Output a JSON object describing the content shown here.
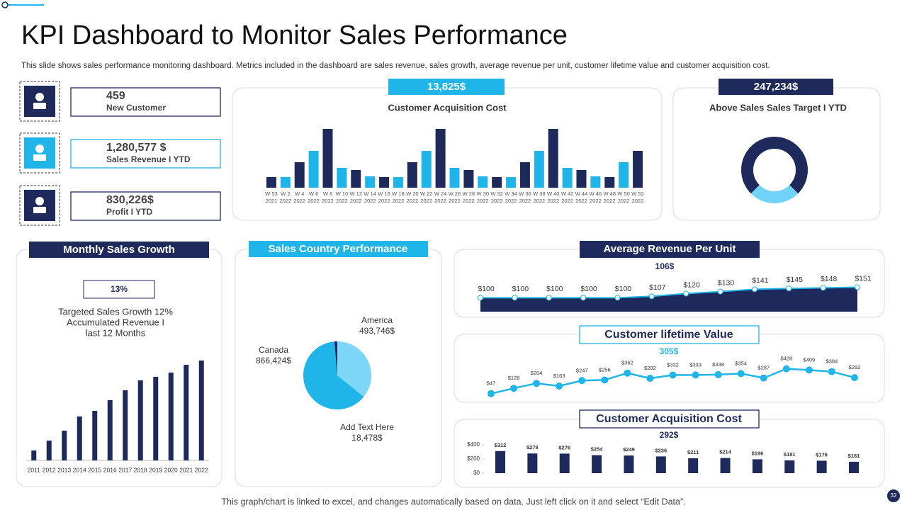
{
  "title": "KPI Dashboard to Monitor Sales Performance",
  "subtitle": "This slide shows sales performance monitoring dashboard. Metrics included in the dashboard are sales revenue, sales growth, average revenue per unit, customer lifetime value and customer acquisition cost.",
  "footer": "This graph/chart is linked to excel, and changes automatically based on data. Just left click on it and select “Edit Data”.",
  "page_number": "32",
  "kpis": [
    {
      "value": "459",
      "label": "New Customer"
    },
    {
      "value": "1,280,577 $",
      "label": "Sales Revenue I YTD"
    },
    {
      "value": "830,226$",
      "label": "Profit I YTD"
    }
  ],
  "chart_data": [
    {
      "type": "bar",
      "title": "Customer Acquisition Cost",
      "highlight": "13,825$",
      "categories": [
        "W 53 2021",
        "W 2 2022",
        "W 4 2022",
        "W 6 2022",
        "W 8 2022",
        "W 10 2022",
        "W 12 2022",
        "W 14 2022",
        "W 16 2022",
        "W 18 2022",
        "W 20 2022",
        "W 22 2022",
        "W 24 2022",
        "W 26 2022",
        "W 28 2022",
        "W 30 2022",
        "W 32 2022",
        "W 34 2022",
        "W 36 2022",
        "W 38 2022",
        "W 40 2022",
        "W 42 2022",
        "W 44 2022",
        "W 46 2022",
        "W 48 2022",
        "W 50 2022",
        "W 52 2022"
      ],
      "values": [
        15,
        15,
        36,
        52,
        83,
        28,
        25,
        16,
        15,
        15,
        36,
        52,
        83,
        28,
        25,
        16,
        15,
        15,
        36,
        52,
        83,
        28,
        25,
        16,
        15,
        36,
        52
      ],
      "colors": [
        "#1f2a5c",
        "#1fb5e8"
      ]
    },
    {
      "type": "donut",
      "title": "Above Sales Sales Target I YTD",
      "highlight": "247,234$",
      "values": [
        75,
        25
      ],
      "colors": [
        "#1f2a5c",
        "#6fd3f7"
      ]
    },
    {
      "type": "bar",
      "title": "Monthly Sales Growth",
      "highlight": "13%",
      "annotation": [
        "Targeted  Sales Growth  12%",
        "Accumulated Revenue  I",
        "last 12 Months"
      ],
      "categories": [
        "2011",
        "2012",
        "2013",
        "2014",
        "2015",
        "2016",
        "2017",
        "2018",
        "2019",
        "2020",
        "2021",
        "2022"
      ],
      "values": [
        14,
        28,
        42,
        62,
        70,
        85,
        99,
        113,
        118,
        124,
        135,
        141
      ],
      "colors": [
        "#1f2a5c"
      ]
    },
    {
      "type": "pie",
      "title": "Sales Country Performance",
      "categories": [
        "America",
        "Canada",
        "Add Text Here"
      ],
      "values": [
        493746,
        866424,
        18478
      ],
      "value_labels": [
        "493,746$",
        "866,424$",
        "18,478$"
      ],
      "colors": [
        "#7dd6f6",
        "#1fb5e8",
        "#1f2a5c"
      ]
    },
    {
      "type": "area",
      "title": "Average Revenue Per Unit",
      "highlight": "106$",
      "values": [
        100,
        100,
        100,
        100,
        100,
        107,
        120,
        130,
        141,
        145,
        148,
        151
      ],
      "value_labels": [
        "$100",
        "$100",
        "$100",
        "$100",
        "$100",
        "$107",
        "$120",
        "$130",
        "$141",
        "$145",
        "$148",
        "$151"
      ],
      "ylim": [
        60,
        170
      ],
      "colors": [
        "#1f2a5c",
        "#1fb5e8"
      ]
    },
    {
      "type": "line",
      "title": "Customer lifetime Value",
      "highlight": "305$",
      "values": [
        47,
        128,
        204,
        163,
        247,
        256,
        362,
        282,
        332,
        333,
        338,
        354,
        287,
        428,
        409,
        384,
        292
      ],
      "value_labels": [
        "$47",
        "$128",
        "$204",
        "$163",
        "$247",
        "$256",
        "$362",
        "$282",
        "$332",
        "$333",
        "$338",
        "$354",
        "$287",
        "$428",
        "$409",
        "$384",
        "$292"
      ],
      "ylim": [
        0,
        500
      ],
      "colors": [
        "#1fb5e8"
      ]
    },
    {
      "type": "bar",
      "title": "Customer Acquisition Cost",
      "highlight": "292$",
      "values": [
        312,
        278,
        276,
        254,
        249,
        236,
        211,
        214,
        196,
        181,
        176,
        161
      ],
      "value_labels": [
        "$312",
        "$278",
        "$276",
        "$254",
        "$249",
        "$236",
        "$211",
        "$214",
        "$196",
        "$181",
        "$176",
        "$161"
      ],
      "ylim": [
        0,
        400
      ],
      "yticks": [
        {
          "value": 0,
          "label": "$0"
        },
        {
          "value": 200,
          "label": "$200"
        },
        {
          "value": 400,
          "label": "$400"
        }
      ],
      "colors": [
        "#1f2a5c"
      ]
    }
  ]
}
